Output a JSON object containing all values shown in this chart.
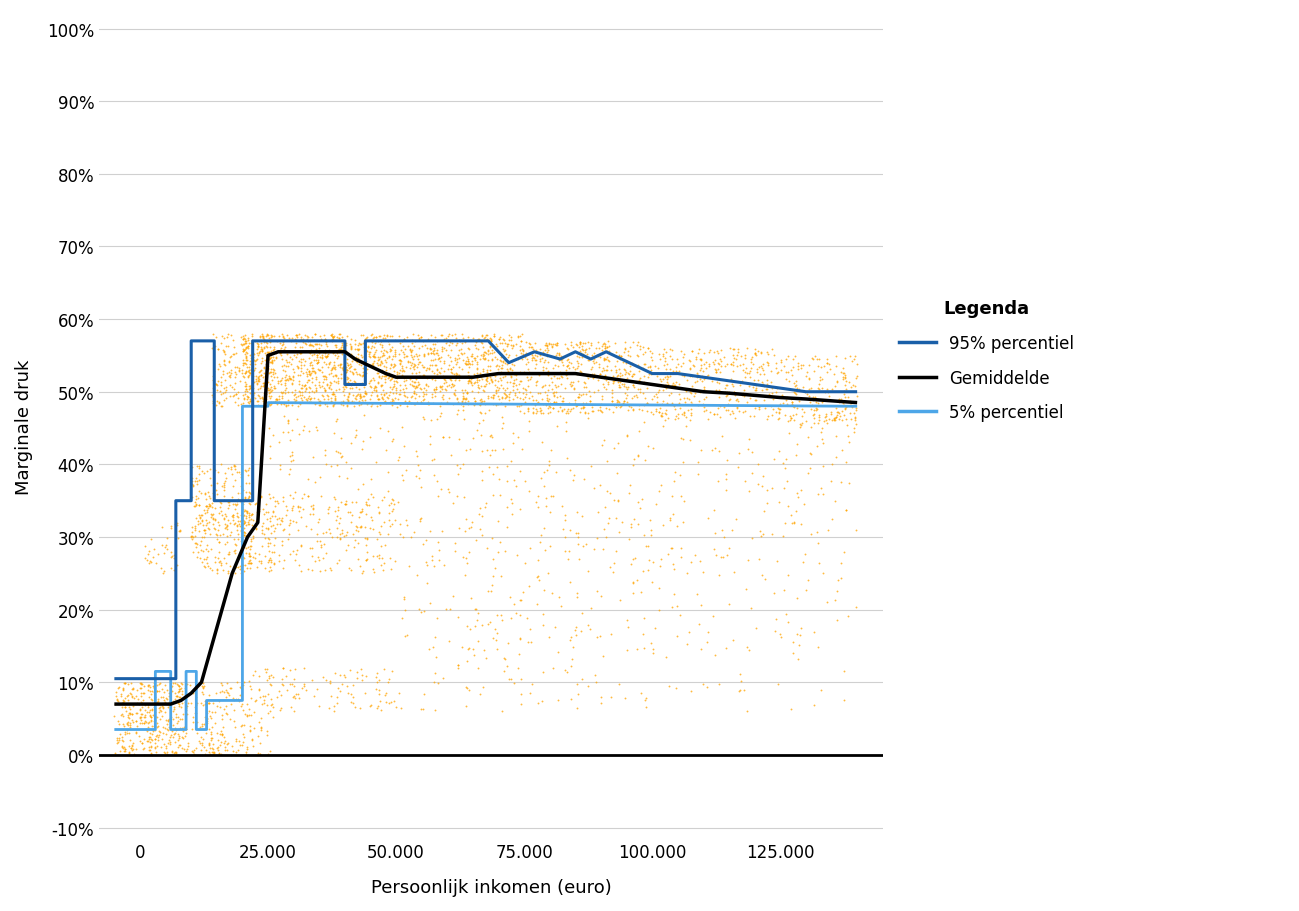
{
  "title": "",
  "xlabel": "Persoonlijk inkomen (euro)",
  "ylabel": "Marginale druk",
  "xlim": [
    -8000,
    145000
  ],
  "ylim": [
    -0.115,
    1.02
  ],
  "yticks": [
    -0.1,
    0.0,
    0.1,
    0.2,
    0.3,
    0.4,
    0.5,
    0.6,
    0.7,
    0.8,
    0.9,
    1.0
  ],
  "xticks": [
    0,
    25000,
    50000,
    75000,
    100000,
    125000
  ],
  "xtick_labels": [
    "0",
    "25.000",
    "50.000",
    "75.000",
    "100.000",
    "125.000"
  ],
  "ytick_labels": [
    "-10%",
    "0%",
    "10%",
    "20%",
    "30%",
    "40%",
    "50%",
    "60%",
    "70%",
    "80%",
    "90%",
    "100%"
  ],
  "legend_title": "Legenda",
  "legend_labels": [
    "95% percentiel",
    "Gemiddelde",
    "5% percentiel"
  ],
  "scatter_color": "#FFA500",
  "line_95_color": "#1a5fa8",
  "line_mean_color": "#000000",
  "line_5_color": "#4da6e8",
  "background_color": "#ffffff",
  "grid_color": "#d0d0d0"
}
